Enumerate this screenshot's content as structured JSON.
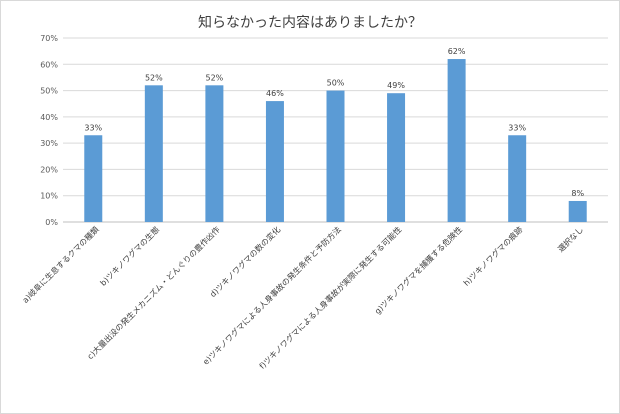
{
  "chart_data": {
    "type": "bar",
    "title": "知らなかった内容はありましたか？",
    "xlabel": "",
    "ylabel": "",
    "ylim": [
      0,
      70
    ],
    "y_ticks": [
      "0%",
      "10%",
      "20%",
      "30%",
      "40%",
      "50%",
      "60%",
      "70%"
    ],
    "grid": true,
    "legend": "none",
    "bar_color": "#5b9bd5",
    "categories": [
      "a)岐阜に生息するクマの種類",
      "b)ツキノワグマの生態",
      "c)大量出没の発生メカニズム・どんぐりの豊作凶作",
      "d)ツキノワグマの数の変化",
      "e)ツキノワグマによる人身事故の発生条件と予防方法",
      "f)ツキノワグマによる人身事故が実際に発生する可能性",
      "g)ツキノワグマを捕獲する危険性",
      "h)ツキノワグマの痕跡",
      "選択なし"
    ],
    "values": [
      33,
      52,
      52,
      46,
      50,
      49,
      62,
      33,
      8
    ],
    "data_labels": [
      "33%",
      "52%",
      "52%",
      "46%",
      "50%",
      "49%",
      "62%",
      "33%",
      "8%"
    ]
  }
}
